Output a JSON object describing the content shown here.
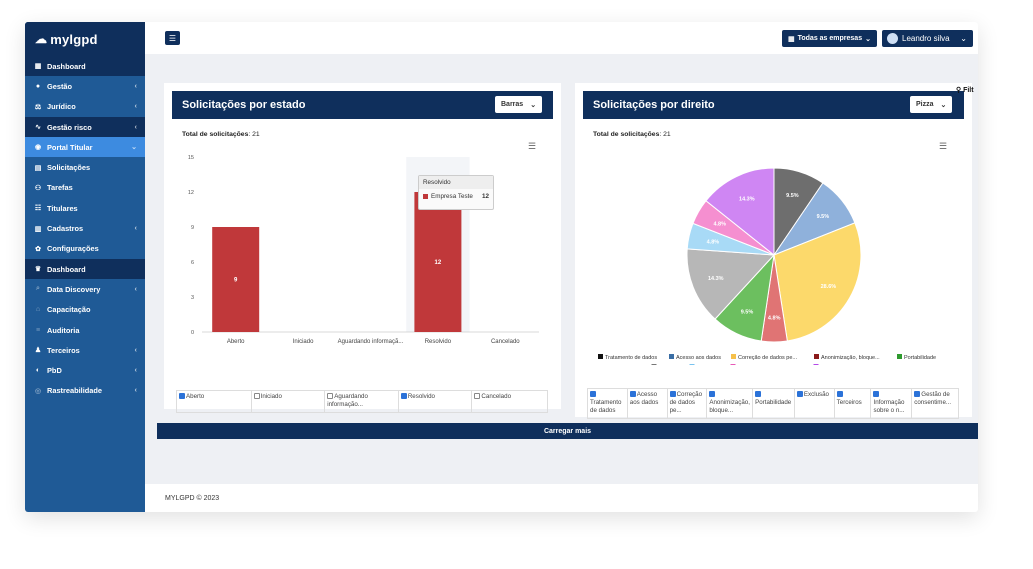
{
  "app": {
    "logo": "mylgpd"
  },
  "sidebar": {
    "items": [
      {
        "label": "Dashboard",
        "icon": "grid-icon",
        "chevron": false,
        "style": "dark"
      },
      {
        "label": "Gestão",
        "icon": "user-icon",
        "chevron": true,
        "style": ""
      },
      {
        "label": "Jurídico",
        "icon": "scale-icon",
        "chevron": true,
        "style": ""
      },
      {
        "label": "Gestão risco",
        "icon": "pulse-icon",
        "chevron": true,
        "style": "dark"
      },
      {
        "label": "Portal Titular",
        "icon": "globe-icon",
        "chevron": true,
        "style": "active"
      },
      {
        "label": "Solicitações",
        "icon": "calendar-icon",
        "chevron": false,
        "style": ""
      },
      {
        "label": "Tarefas",
        "icon": "sitemap-icon",
        "chevron": false,
        "style": ""
      },
      {
        "label": "Titulares",
        "icon": "users-icon",
        "chevron": false,
        "style": ""
      },
      {
        "label": "Cadastros",
        "icon": "table-icon",
        "chevron": true,
        "style": ""
      },
      {
        "label": "Configurações",
        "icon": "gear-icon",
        "chevron": false,
        "style": ""
      },
      {
        "label": "Dashboard",
        "icon": "trophy-icon",
        "chevron": false,
        "style": "dark"
      },
      {
        "label": "Data Discovery",
        "icon": "search-icon",
        "chevron": true,
        "style": "dim"
      },
      {
        "label": "Capacitação",
        "icon": "graduation-icon",
        "chevron": false,
        "style": "dim"
      },
      {
        "label": "Auditoria",
        "icon": "list-icon",
        "chevron": false,
        "style": "dim"
      },
      {
        "label": "Terceiros",
        "icon": "people-icon",
        "chevron": true,
        "style": ""
      },
      {
        "label": "PbD",
        "icon": "eye-icon",
        "chevron": true,
        "style": ""
      },
      {
        "label": "Rastreabilidade",
        "icon": "target-icon",
        "chevron": true,
        "style": "dim"
      }
    ]
  },
  "topbar": {
    "menu_icon": "hamburger-icon",
    "company_label": "Todas as empresas",
    "user_label": "Leandro silva"
  },
  "filter_fragment": "Filt",
  "card_estado": {
    "title": "Solicitações por estado",
    "select_value": "Barras",
    "total_label": "Total de solicitações",
    "total_value": ": 21",
    "tooltip_title": "Resolvido",
    "tooltip_series": "Empresa Teste",
    "tooltip_value": "12",
    "legend": [
      {
        "label": "Aberto",
        "checked": true
      },
      {
        "label": "Iniciado",
        "checked": false
      },
      {
        "label": "Aguardando informação...",
        "checked": false
      },
      {
        "label": "Resolvido",
        "checked": true
      },
      {
        "label": "Cancelado",
        "checked": false
      }
    ]
  },
  "card_direito": {
    "title": "Solicitações por direito",
    "select_value": "Pizza",
    "total_label": "Total de solicitações",
    "total_value": ": 21",
    "legend": [
      {
        "label": "Tratamento de dados",
        "checked": true
      },
      {
        "label": "Acesso aos dados",
        "checked": true
      },
      {
        "label": "Correção de dados pe...",
        "checked": true
      },
      {
        "label": "Anonimização, bloque...",
        "checked": true
      },
      {
        "label": "Portabilidade",
        "checked": true
      },
      {
        "label": "Exclusão",
        "checked": true
      },
      {
        "label": "Terceiros",
        "checked": true
      },
      {
        "label": "Informação sobre o n...",
        "checked": true
      },
      {
        "label": "Gestão de consentime...",
        "checked": true
      }
    ]
  },
  "load_more": "Carregar mais",
  "footer": "MYLGPD © 2023",
  "chart_data": [
    {
      "type": "bar",
      "categories": [
        "Aberto",
        "Iniciado",
        "Aguardando informaçã...",
        "Resolvido",
        "Cancelado"
      ],
      "values": [
        9,
        0,
        0,
        12,
        0
      ],
      "ylim": [
        0,
        15
      ],
      "yticks": [
        0,
        3,
        6,
        9,
        12,
        15
      ],
      "color": "#c0383a",
      "grid": false
    },
    {
      "type": "pie",
      "slices": [
        {
          "label": "Tratamento de dados",
          "value": 9.5,
          "color": "#6e6e6e",
          "display": "9.5%"
        },
        {
          "label": "Acesso aos dados",
          "value": 9.5,
          "color": "#8fb1db",
          "display": "9.5%"
        },
        {
          "label": "Correção de dados pe...",
          "value": 28.6,
          "color": "#fcd96b",
          "display": "28.6%"
        },
        {
          "label": "Anonimização, bloque...",
          "value": 4.8,
          "color": "#e07474",
          "display": "4.8%"
        },
        {
          "label": "Portabilidade",
          "value": 9.5,
          "color": "#6cbf5f",
          "display": "9.5%"
        },
        {
          "label": "Exclusão",
          "value": 14.3,
          "color": "#b7b7b7",
          "display": "14.3%"
        },
        {
          "label": "Terceiros",
          "value": 4.8,
          "color": "#a8daf6",
          "display": "4.8%"
        },
        {
          "label": "Informação sobre o n...",
          "value": 4.8,
          "color": "#f58fd0",
          "display": "4.8%"
        },
        {
          "label": "Gestão de consentime...",
          "value": 14.3,
          "color": "#cf86f3",
          "display": "14.3%"
        }
      ],
      "legend_colors": [
        "#111111",
        "#3a6ea5",
        "#f6c04a",
        "#8b1a1a",
        "#2e9a2e",
        "#777777",
        "#79c3ef",
        "#e85ab7",
        "#b44ae8"
      ]
    }
  ]
}
